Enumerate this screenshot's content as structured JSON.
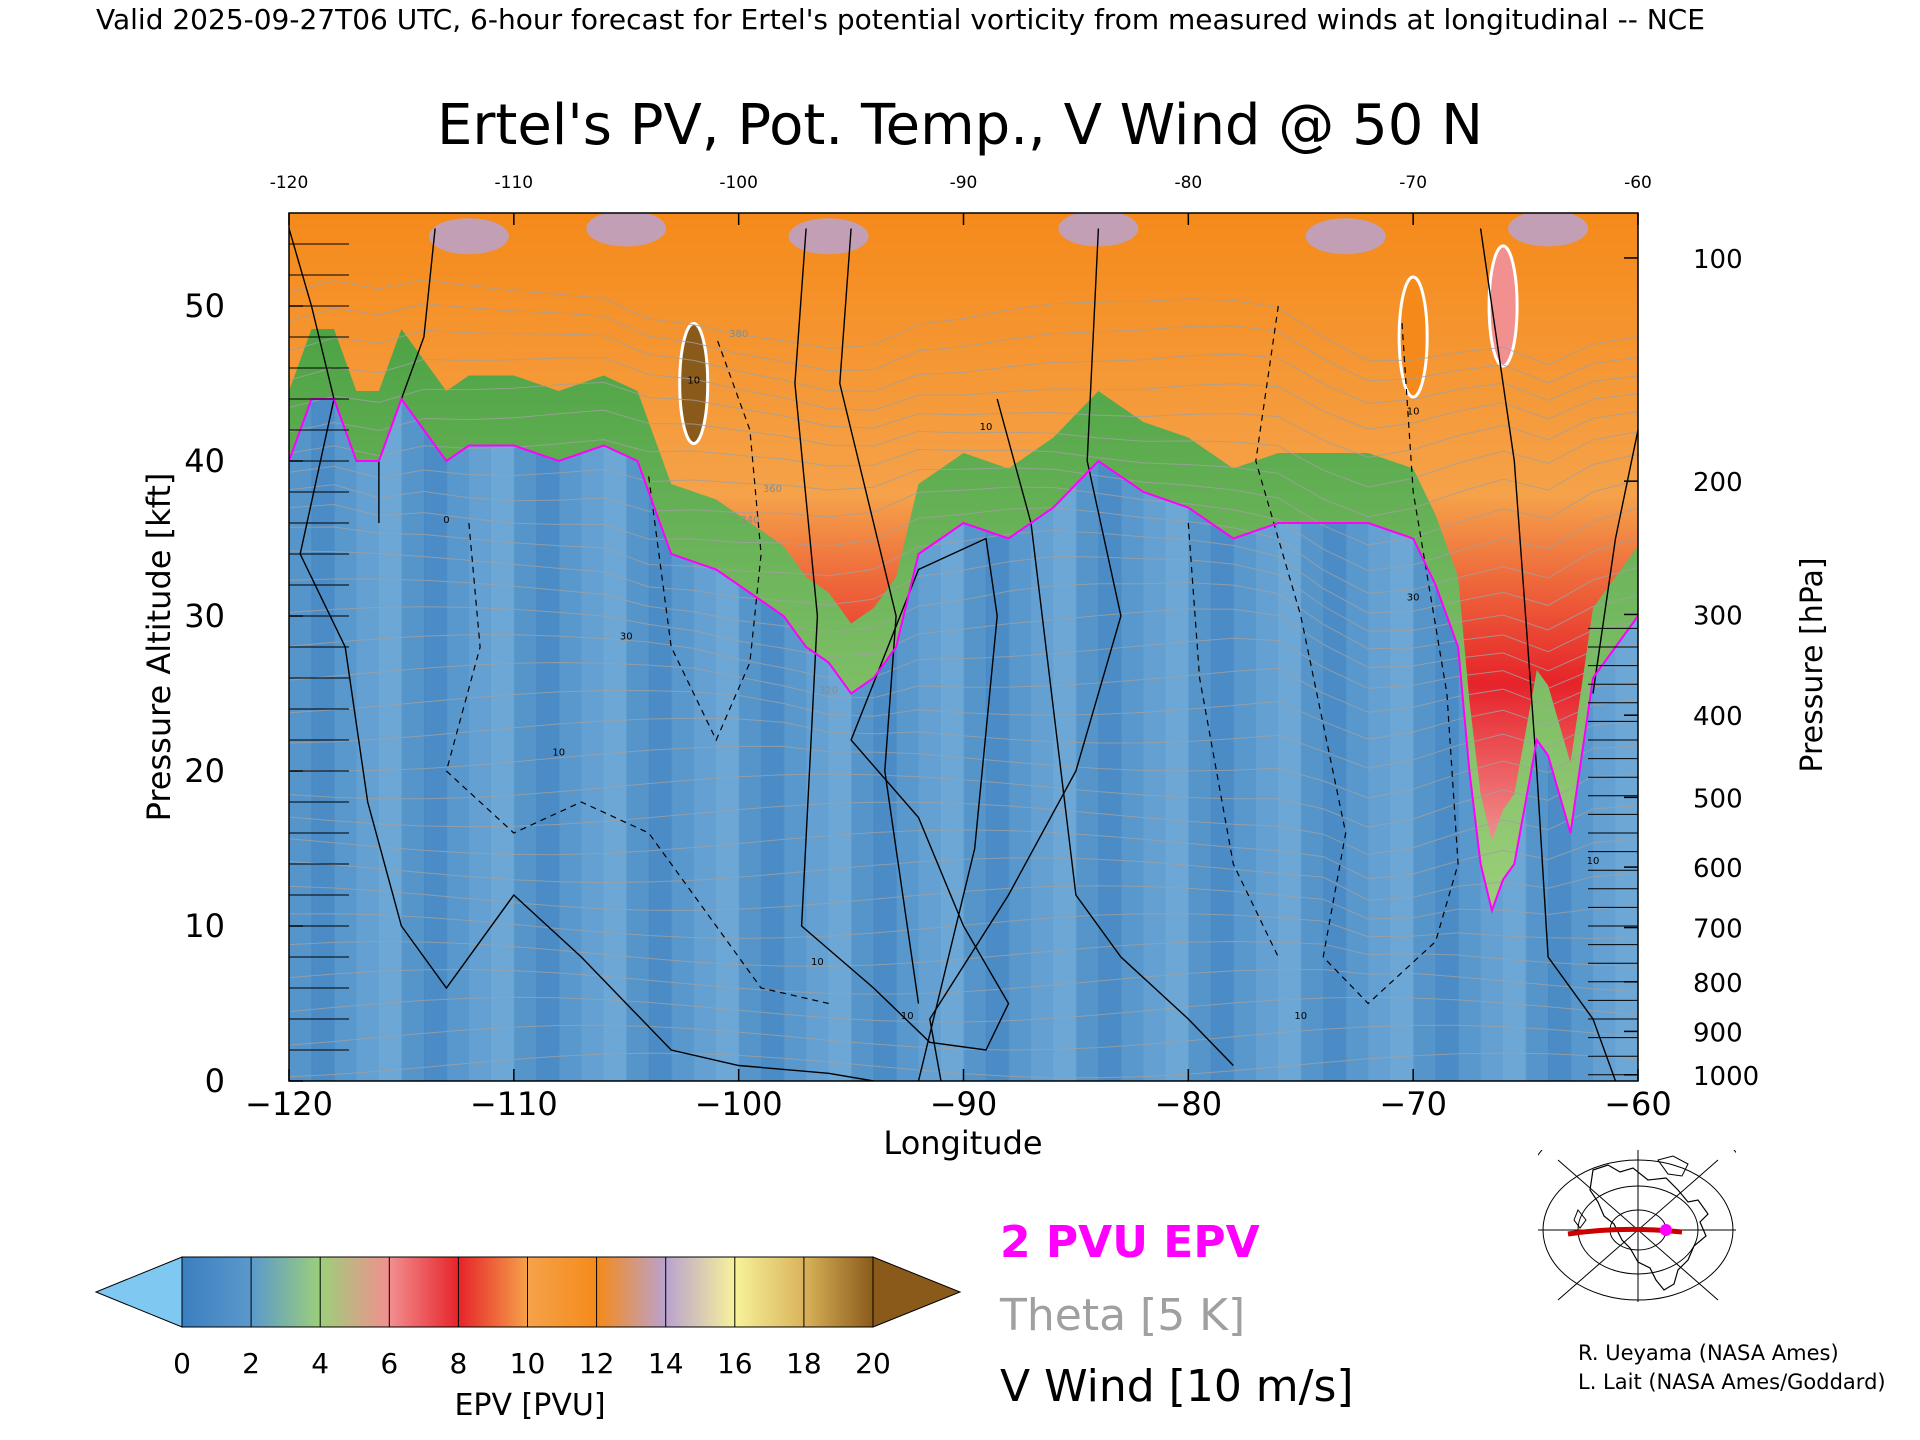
{
  "header": {
    "valid_line": "Valid 2025-09-27T06 UTC, 6-hour forecast for Ertel's potential vorticity from measured winds at longitudinal -- NCE"
  },
  "chart_data": {
    "type": "heatmap",
    "title": "Ertel's PV, Pot. Temp., V Wind @ 50 N",
    "xlabel": "Longitude",
    "ylabel": "Pressure Altitude [kft]",
    "y2label": "Pressure [hPa]",
    "xlim": [
      -120,
      -60
    ],
    "ylim": [
      0,
      56
    ],
    "x_ticks": [
      -120,
      -110,
      -100,
      -90,
      -80,
      -70,
      -60
    ],
    "x_tick_labels": [
      "−120",
      "−110",
      "−100",
      "−90",
      "−80",
      "−70",
      "−60"
    ],
    "x_top_tick_labels": [
      "-120",
      "-110",
      "-100",
      "-90",
      "-80",
      "-70",
      "-60"
    ],
    "y_ticks": [
      0,
      10,
      20,
      30,
      40,
      50
    ],
    "y_tick_labels": [
      "0",
      "10",
      "20",
      "30",
      "40",
      "50"
    ],
    "pressure_ticks": [
      {
        "hpa": 100,
        "kft": 53.1,
        "label": "100"
      },
      {
        "hpa": 200,
        "kft": 38.7,
        "label": "200"
      },
      {
        "hpa": 300,
        "kft": 30.1,
        "label": "300"
      },
      {
        "hpa": 400,
        "kft": 23.6,
        "label": "400"
      },
      {
        "hpa": 500,
        "kft": 18.3,
        "label": "500"
      },
      {
        "hpa": 600,
        "kft": 13.8,
        "label": "600"
      },
      {
        "hpa": 700,
        "kft": 9.9,
        "label": "700"
      },
      {
        "hpa": 800,
        "kft": 6.4,
        "label": "800"
      },
      {
        "hpa": 900,
        "kft": 3.2,
        "label": "900"
      },
      {
        "hpa": 1000,
        "kft": 0.4,
        "label": "1000"
      }
    ],
    "pv_2pvu_boundary": {
      "lon": [
        -120,
        -119,
        -118,
        -117,
        -116,
        -115,
        -114,
        -113,
        -112,
        -110,
        -108,
        -106,
        -104.5,
        -103,
        -101,
        -99,
        -98,
        -97,
        -96,
        -95,
        -94,
        -93,
        -92,
        -90,
        -88,
        -86,
        -84,
        -82,
        -80,
        -78,
        -76,
        -74,
        -72,
        -70,
        -69,
        -68,
        -67.5,
        -67,
        -66.5,
        -66,
        -65.5,
        -65,
        -64.5,
        -64,
        -63,
        -62,
        -61,
        -60
      ],
      "kft": [
        40,
        44,
        44,
        40,
        40,
        44,
        42,
        40,
        41,
        41,
        40,
        41,
        40,
        34,
        33,
        31,
        30,
        28,
        27,
        25,
        26,
        28,
        34,
        36,
        35,
        37,
        40,
        38,
        37,
        35,
        36,
        36,
        36,
        35,
        32,
        28,
        20,
        14,
        11,
        13,
        14,
        18,
        22,
        21,
        16,
        26,
        28,
        30
      ]
    },
    "pv_peaks": [
      {
        "lon": -102,
        "kft": 45,
        "pvu": 20
      },
      {
        "lon": -66,
        "kft": 50,
        "pvu": 6
      },
      {
        "lon": -70,
        "kft": 48,
        "pvu": 12
      }
    ],
    "theta_contours": {
      "interval_k": 5,
      "labels": [
        {
          "lon": -96,
          "kft": 25,
          "text": "320"
        },
        {
          "lon": -99.5,
          "kft": 36,
          "text": "340"
        },
        {
          "lon": -98.5,
          "kft": 38,
          "text": "360"
        },
        {
          "lon": -100,
          "kft": 48,
          "text": "380"
        }
      ]
    },
    "vwind_contours": {
      "interval_ms": 10,
      "labels": [
        {
          "lon": -113,
          "kft": 36,
          "text": "0"
        },
        {
          "lon": -105,
          "kft": 28.5,
          "text": "30"
        },
        {
          "lon": -102,
          "kft": 45,
          "text": "10"
        },
        {
          "lon": -108,
          "kft": 21,
          "text": "10"
        },
        {
          "lon": -89,
          "kft": 42,
          "text": "10"
        },
        {
          "lon": -70,
          "kft": 43,
          "text": "10"
        },
        {
          "lon": -70,
          "kft": 31,
          "text": "30"
        },
        {
          "lon": -75,
          "kft": 4,
          "text": "10"
        },
        {
          "lon": -62,
          "kft": 14,
          "text": "10"
        },
        {
          "lon": -92.5,
          "kft": 4,
          "text": "10"
        },
        {
          "lon": -96.5,
          "kft": 7.5,
          "text": "10"
        }
      ]
    },
    "colorbar": {
      "label": "EPV [PVU]",
      "ticks": [
        "0",
        "2",
        "4",
        "6",
        "8",
        "10",
        "12",
        "14",
        "16",
        "18",
        "20"
      ],
      "colors": [
        "#3a7fc0",
        "#5b99cc",
        "#9ccf7a",
        "#3d9a3a",
        "#f28f8f",
        "#e6232a",
        "#f5a24a",
        "#f58a1a",
        "#b9a2cf",
        "#6a3d9a",
        "#f7f29a",
        "#d9b35a",
        "#8a5a1a"
      ],
      "low_color": "#7ec8f2",
      "high_color": "#8a5a1a"
    },
    "legend": {
      "pv_label": "2 PVU EPV",
      "pv_color": "#ff00ff",
      "theta_label": "Theta [5 K]",
      "theta_color": "#a0a0a0",
      "wind_label": "V Wind [10 m/s]",
      "wind_color": "#000000"
    }
  },
  "credits": {
    "line1": "R. Ueyama (NASA Ames)",
    "line2": "L. Lait (NASA Ames/Goddard)"
  },
  "inset_map": {
    "line_color": "#cc0000",
    "marker_color": "#ff00ff"
  }
}
